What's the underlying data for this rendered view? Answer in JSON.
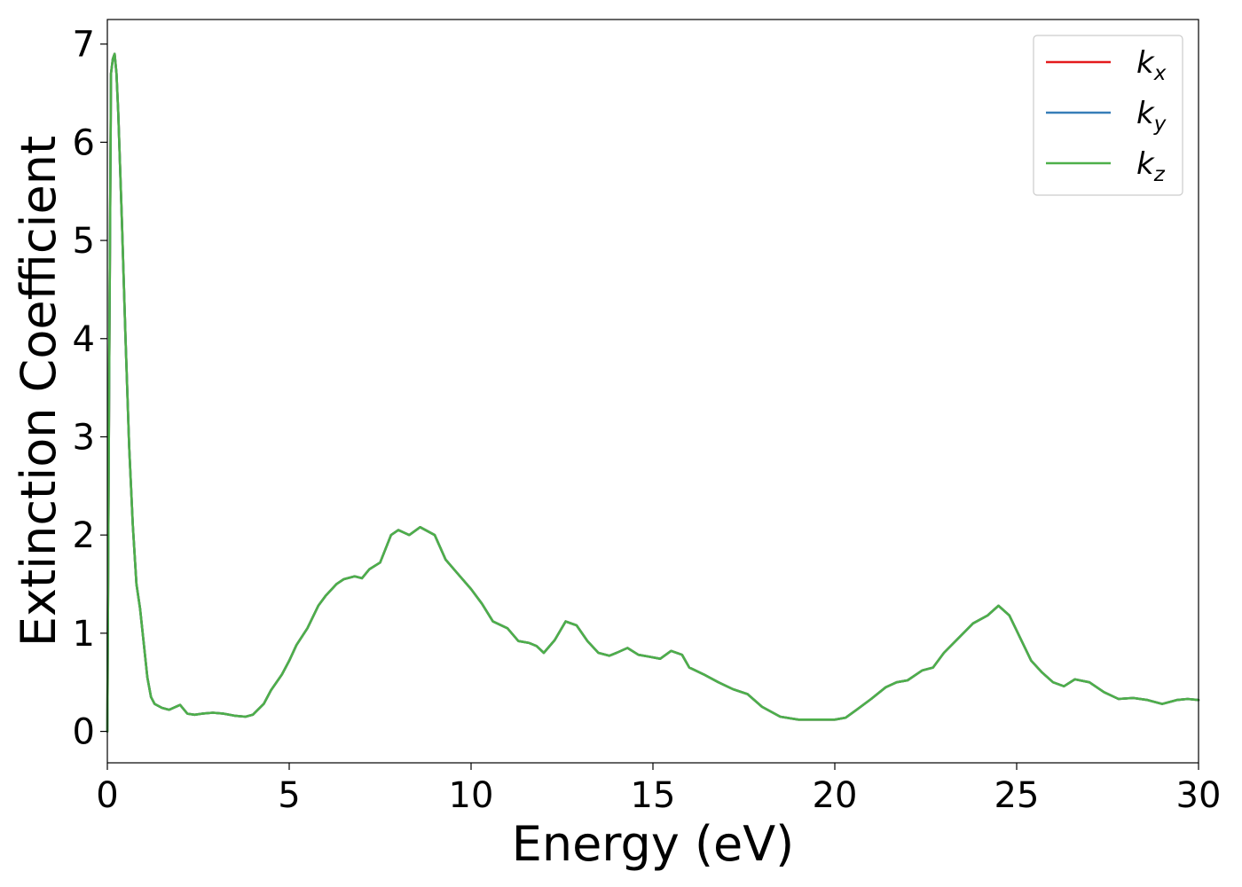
{
  "chart_data": {
    "type": "line",
    "title": "",
    "xlabel": "Energy (eV)",
    "ylabel": "Extinction Coefficient",
    "xlim": [
      0,
      30
    ],
    "ylim": [
      -0.32,
      7.25
    ],
    "xticks": [
      0,
      5,
      10,
      15,
      20,
      25,
      30
    ],
    "yticks": [
      0,
      1,
      2,
      3,
      4,
      5,
      6,
      7
    ],
    "grid": false,
    "legend_position": "top-right",
    "x": [
      0,
      0.05,
      0.1,
      0.15,
      0.2,
      0.25,
      0.3,
      0.4,
      0.5,
      0.6,
      0.7,
      0.8,
      0.9,
      1.0,
      1.1,
      1.2,
      1.3,
      1.5,
      1.7,
      2.0,
      2.2,
      2.4,
      2.6,
      2.9,
      3.2,
      3.5,
      3.8,
      4.0,
      4.3,
      4.5,
      4.8,
      5.0,
      5.2,
      5.5,
      5.8,
      6.0,
      6.3,
      6.5,
      6.8,
      7.0,
      7.2,
      7.5,
      7.8,
      8.0,
      8.3,
      8.6,
      9.0,
      9.3,
      9.6,
      10.0,
      10.3,
      10.6,
      11.0,
      11.3,
      11.6,
      11.8,
      12.0,
      12.3,
      12.6,
      12.9,
      13.2,
      13.5,
      13.8,
      14.0,
      14.3,
      14.6,
      14.9,
      15.2,
      15.5,
      15.8,
      16.0,
      16.4,
      16.8,
      17.2,
      17.6,
      18.0,
      18.5,
      19.0,
      19.5,
      20.0,
      20.3,
      20.6,
      21.0,
      21.4,
      21.7,
      22.0,
      22.4,
      22.7,
      23.0,
      23.4,
      23.8,
      24.2,
      24.5,
      24.8,
      25.1,
      25.4,
      25.7,
      26.0,
      26.3,
      26.6,
      27.0,
      27.4,
      27.8,
      28.2,
      28.6,
      29.0,
      29.4,
      29.7,
      30.0
    ],
    "series": [
      {
        "name": "k_x",
        "color": "#e41a1c",
        "values": [
          0,
          3.5,
          6.7,
          6.85,
          6.9,
          6.7,
          6.3,
          5.2,
          4.0,
          2.9,
          2.1,
          1.5,
          1.25,
          0.9,
          0.55,
          0.35,
          0.28,
          0.24,
          0.22,
          0.27,
          0.18,
          0.17,
          0.18,
          0.19,
          0.18,
          0.16,
          0.15,
          0.17,
          0.28,
          0.42,
          0.58,
          0.72,
          0.88,
          1.05,
          1.28,
          1.38,
          1.5,
          1.55,
          1.58,
          1.56,
          1.65,
          1.72,
          2.0,
          2.05,
          2.0,
          2.08,
          2.0,
          1.75,
          1.62,
          1.45,
          1.3,
          1.12,
          1.05,
          0.92,
          0.9,
          0.87,
          0.8,
          0.93,
          1.12,
          1.08,
          0.92,
          0.8,
          0.77,
          0.8,
          0.85,
          0.78,
          0.76,
          0.74,
          0.82,
          0.78,
          0.65,
          0.58,
          0.5,
          0.43,
          0.38,
          0.25,
          0.15,
          0.12,
          0.12,
          0.12,
          0.14,
          0.22,
          0.33,
          0.45,
          0.5,
          0.52,
          0.62,
          0.65,
          0.8,
          0.95,
          1.1,
          1.18,
          1.28,
          1.18,
          0.95,
          0.72,
          0.6,
          0.5,
          0.46,
          0.53,
          0.5,
          0.4,
          0.33,
          0.34,
          0.32,
          0.28,
          0.32,
          0.33,
          0.32
        ]
      },
      {
        "name": "k_y",
        "color": "#377eb8",
        "values": [
          0,
          3.5,
          6.7,
          6.85,
          6.9,
          6.7,
          6.3,
          5.2,
          4.0,
          2.9,
          2.1,
          1.5,
          1.25,
          0.9,
          0.55,
          0.35,
          0.28,
          0.24,
          0.22,
          0.27,
          0.18,
          0.17,
          0.18,
          0.19,
          0.18,
          0.16,
          0.15,
          0.17,
          0.28,
          0.42,
          0.58,
          0.72,
          0.88,
          1.05,
          1.28,
          1.38,
          1.5,
          1.55,
          1.58,
          1.56,
          1.65,
          1.72,
          2.0,
          2.05,
          2.0,
          2.08,
          2.0,
          1.75,
          1.62,
          1.45,
          1.3,
          1.12,
          1.05,
          0.92,
          0.9,
          0.87,
          0.8,
          0.93,
          1.12,
          1.08,
          0.92,
          0.8,
          0.77,
          0.8,
          0.85,
          0.78,
          0.76,
          0.74,
          0.82,
          0.78,
          0.65,
          0.58,
          0.5,
          0.43,
          0.38,
          0.25,
          0.15,
          0.12,
          0.12,
          0.12,
          0.14,
          0.22,
          0.33,
          0.45,
          0.5,
          0.52,
          0.62,
          0.65,
          0.8,
          0.95,
          1.1,
          1.18,
          1.28,
          1.18,
          0.95,
          0.72,
          0.6,
          0.5,
          0.46,
          0.53,
          0.5,
          0.4,
          0.33,
          0.34,
          0.32,
          0.28,
          0.32,
          0.33,
          0.32
        ]
      },
      {
        "name": "k_z",
        "color": "#4daf4a",
        "values": [
          0,
          3.5,
          6.7,
          6.85,
          6.9,
          6.7,
          6.3,
          5.2,
          4.0,
          2.9,
          2.1,
          1.5,
          1.25,
          0.9,
          0.55,
          0.35,
          0.28,
          0.24,
          0.22,
          0.27,
          0.18,
          0.17,
          0.18,
          0.19,
          0.18,
          0.16,
          0.15,
          0.17,
          0.28,
          0.42,
          0.58,
          0.72,
          0.88,
          1.05,
          1.28,
          1.38,
          1.5,
          1.55,
          1.58,
          1.56,
          1.65,
          1.72,
          2.0,
          2.05,
          2.0,
          2.08,
          2.0,
          1.75,
          1.62,
          1.45,
          1.3,
          1.12,
          1.05,
          0.92,
          0.9,
          0.87,
          0.8,
          0.93,
          1.12,
          1.08,
          0.92,
          0.8,
          0.77,
          0.8,
          0.85,
          0.78,
          0.76,
          0.74,
          0.82,
          0.78,
          0.65,
          0.58,
          0.5,
          0.43,
          0.38,
          0.25,
          0.15,
          0.12,
          0.12,
          0.12,
          0.14,
          0.22,
          0.33,
          0.45,
          0.5,
          0.52,
          0.62,
          0.65,
          0.8,
          0.95,
          1.1,
          1.18,
          1.28,
          1.18,
          0.95,
          0.72,
          0.6,
          0.5,
          0.46,
          0.53,
          0.5,
          0.4,
          0.33,
          0.34,
          0.32,
          0.28,
          0.32,
          0.33,
          0.32
        ]
      }
    ],
    "legend": [
      {
        "base": "k",
        "sub": "x"
      },
      {
        "base": "k",
        "sub": "y"
      },
      {
        "base": "k",
        "sub": "z"
      }
    ]
  }
}
